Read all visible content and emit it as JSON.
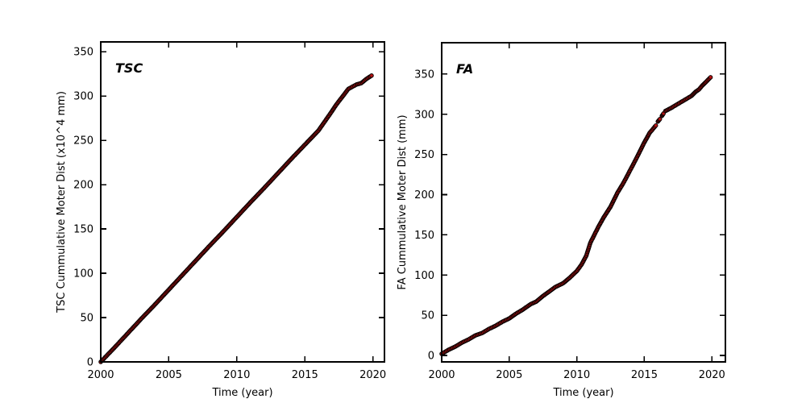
{
  "page": {
    "background": "#ffffff",
    "spine_color": "#000000",
    "text_color": "#000000"
  },
  "chart_data": [
    {
      "type": "scatter",
      "title": "TSC",
      "xlabel": "Time (year)",
      "ylabel": "TSC Cummulative Moter Dist (x10^4 mm)",
      "xlim": [
        2000,
        2020.85
      ],
      "ylim": [
        0,
        361
      ],
      "xticks": [
        2000,
        2005,
        2010,
        2015,
        2020
      ],
      "yticks": [
        0,
        50,
        100,
        150,
        200,
        250,
        300,
        350
      ],
      "grid": false,
      "legend": "none",
      "marker": "circle",
      "marker_color": "#b51212",
      "marker_edge_color": "#000000",
      "segments": [
        [
          [
            2000.0,
            0
          ],
          [
            2001.0,
            16
          ],
          [
            2002.0,
            32.5
          ],
          [
            2003.0,
            49
          ],
          [
            2004.0,
            65
          ],
          [
            2005.0,
            81.5
          ],
          [
            2006.0,
            98
          ],
          [
            2007.0,
            114.5
          ],
          [
            2008.0,
            131
          ],
          [
            2009.0,
            147
          ],
          [
            2010.0,
            163.5
          ],
          [
            2011.0,
            180
          ],
          [
            2012.0,
            196
          ],
          [
            2013.0,
            212.5
          ],
          [
            2014.0,
            229
          ],
          [
            2015.0,
            245
          ],
          [
            2016.0,
            261
          ],
          [
            2017.0,
            283
          ],
          [
            2017.3,
            290
          ],
          [
            2018.2,
            308
          ],
          [
            2018.8,
            313
          ],
          [
            2019.15,
            314.5
          ],
          [
            2019.5,
            319
          ],
          [
            2019.9,
            323
          ]
        ]
      ]
    },
    {
      "type": "scatter",
      "title": "FA",
      "xlabel": "Time (year)",
      "ylabel": "FA Cummulative Moter Dist (mm)",
      "xlim": [
        2000,
        2021
      ],
      "ylim": [
        -8,
        389
      ],
      "xticks": [
        2000,
        2005,
        2010,
        2015,
        2020
      ],
      "yticks": [
        0,
        50,
        100,
        150,
        200,
        250,
        300,
        350
      ],
      "grid": false,
      "legend": "none",
      "marker": "circle",
      "marker_color": "#b51212",
      "marker_edge_color": "#000000",
      "segments": [
        [
          [
            2000.0,
            2
          ],
          [
            2000.5,
            7
          ],
          [
            2001.0,
            11
          ],
          [
            2001.5,
            16
          ],
          [
            2002.0,
            20
          ],
          [
            2002.5,
            25
          ],
          [
            2003.0,
            28
          ],
          [
            2003.5,
            33
          ],
          [
            2004.0,
            37
          ],
          [
            2004.5,
            42
          ],
          [
            2005.0,
            46
          ],
          [
            2005.5,
            52
          ],
          [
            2006.0,
            57
          ],
          [
            2006.6,
            64
          ],
          [
            2007.0,
            67
          ],
          [
            2007.5,
            74
          ],
          [
            2008.0,
            80
          ],
          [
            2008.4,
            85
          ],
          [
            2009.0,
            90
          ],
          [
            2009.5,
            97
          ],
          [
            2010.0,
            105
          ],
          [
            2010.35,
            113
          ],
          [
            2010.7,
            124
          ],
          [
            2011.0,
            140
          ],
          [
            2011.6,
            160
          ],
          [
            2012.0,
            172
          ],
          [
            2012.5,
            185
          ],
          [
            2013.0,
            202
          ],
          [
            2013.5,
            216
          ],
          [
            2014.0,
            232
          ],
          [
            2014.5,
            248
          ],
          [
            2015.0,
            265
          ],
          [
            2015.4,
            277
          ],
          [
            2015.85,
            286
          ]
        ],
        [
          [
            2016.0,
            291
          ],
          [
            2016.15,
            294
          ]
        ],
        [
          [
            2016.3,
            298
          ],
          [
            2016.42,
            301
          ]
        ],
        [
          [
            2016.55,
            304
          ],
          [
            2017.0,
            308
          ],
          [
            2017.5,
            313
          ],
          [
            2018.0,
            318
          ],
          [
            2018.5,
            323
          ],
          [
            2018.8,
            328
          ],
          [
            2019.05,
            331
          ],
          [
            2019.3,
            336
          ],
          [
            2019.55,
            340
          ],
          [
            2019.9,
            346
          ]
        ]
      ]
    }
  ]
}
